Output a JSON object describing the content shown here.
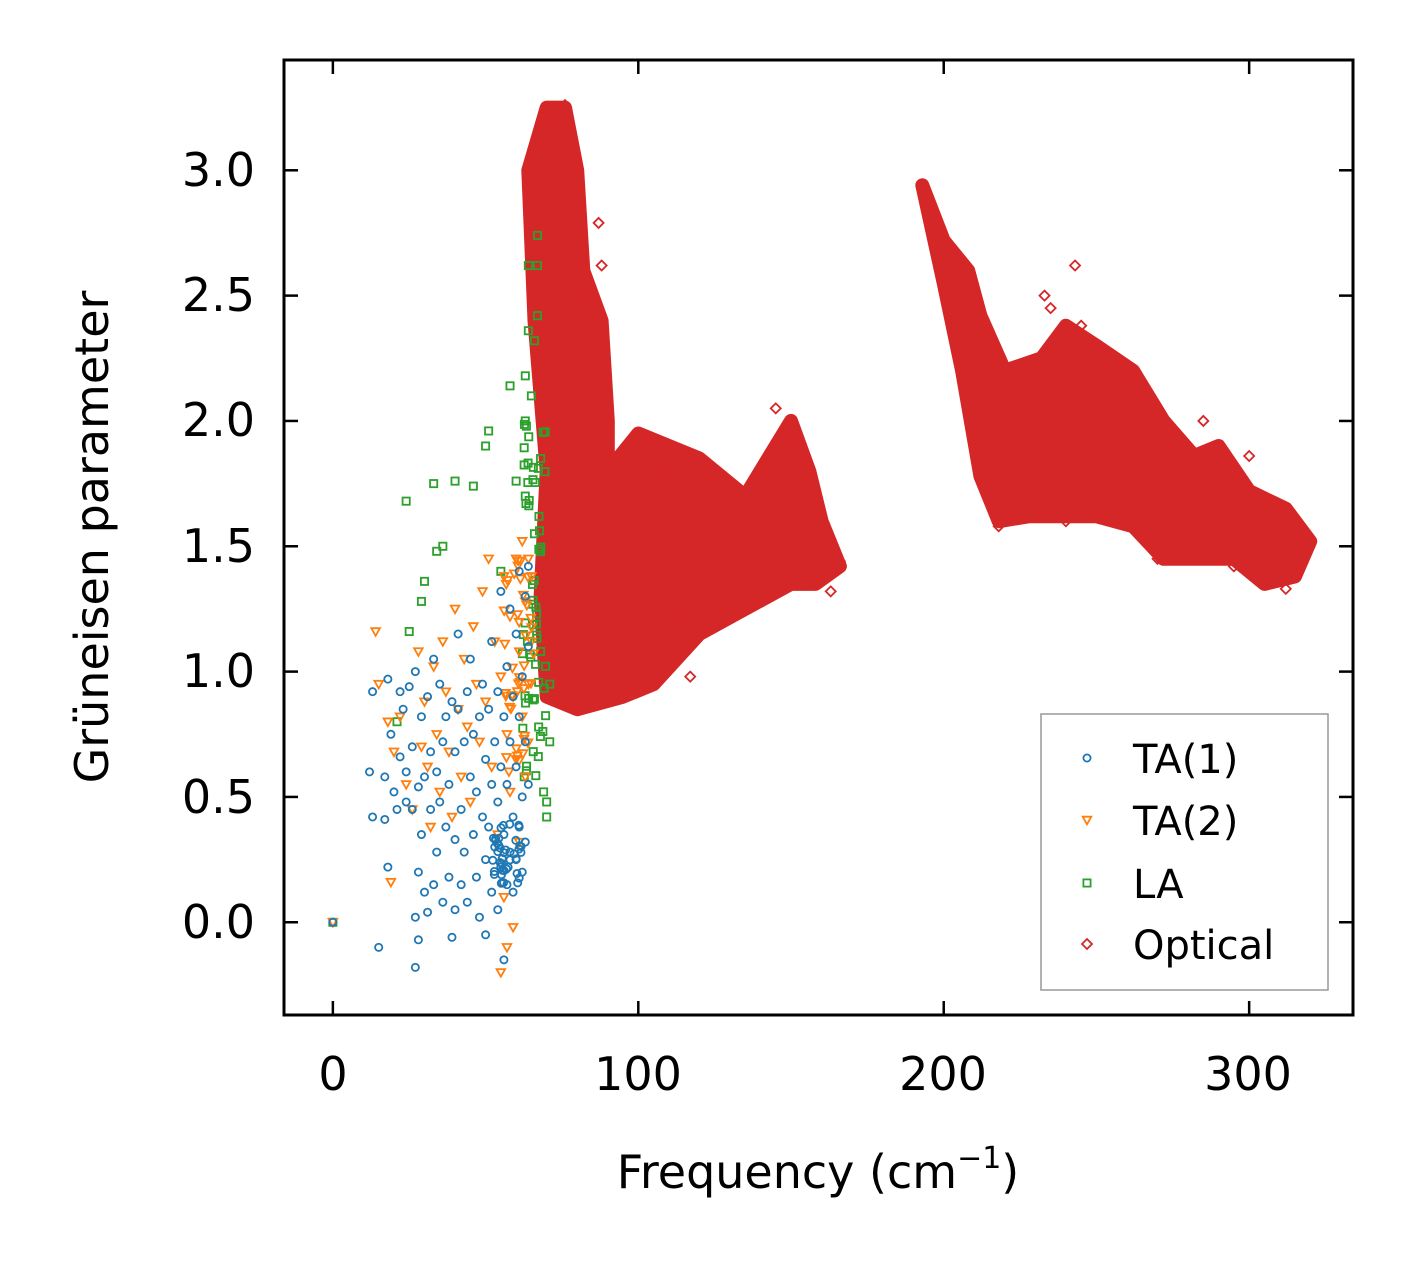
{
  "chart_data": {
    "type": "scatter",
    "title": "",
    "xlabel": "Frequency (cm",
    "xlabel_sup": "−1",
    "xlabel_close": ")",
    "ylabel": "Grüneisen parameter",
    "xlim": [
      -16,
      334
    ],
    "ylim": [
      -0.37,
      3.44
    ],
    "xticks": [
      0,
      100,
      200,
      300
    ],
    "xtick_labels": [
      "0",
      "100",
      "200",
      "300"
    ],
    "yticks": [
      0.0,
      0.5,
      1.0,
      1.5,
      2.0,
      2.5,
      3.0
    ],
    "ytick_labels": [
      "0.0",
      "0.5",
      "1.0",
      "1.5",
      "2.0",
      "2.5",
      "3.0"
    ],
    "grid": false,
    "legend_position": "lower-right",
    "series": [
      {
        "name": "TA(1)",
        "marker": "circle",
        "color": "#1f77b4",
        "points": [
          [
            0,
            0
          ],
          [
            12,
            0.6
          ],
          [
            13,
            0.92
          ],
          [
            13,
            0.42
          ],
          [
            15,
            -0.1
          ],
          [
            17,
            0.41
          ],
          [
            17,
            0.58
          ],
          [
            18,
            0.22
          ],
          [
            18,
            0.97
          ],
          [
            19,
            0.75
          ],
          [
            20,
            0.52
          ],
          [
            21,
            0.45
          ],
          [
            22,
            0.66
          ],
          [
            22,
            0.92
          ],
          [
            23,
            0.85
          ],
          [
            24,
            0.48
          ],
          [
            24,
            0.6
          ],
          [
            25,
            0.94
          ],
          [
            26,
            0.45
          ],
          [
            26,
            0.7
          ],
          [
            27,
            -0.18
          ],
          [
            27,
            1.0
          ],
          [
            27,
            0.02
          ],
          [
            28,
            0.54
          ],
          [
            28,
            0.2
          ],
          [
            28,
            -0.07
          ],
          [
            29,
            0.35
          ],
          [
            29,
            0.82
          ],
          [
            30,
            0.12
          ],
          [
            30,
            0.58
          ],
          [
            31,
            0.9
          ],
          [
            31,
            0.04
          ],
          [
            32,
            0.45
          ],
          [
            32,
            0.68
          ],
          [
            33,
            1.05
          ],
          [
            33,
            0.15
          ],
          [
            34,
            0.6
          ],
          [
            34,
            0.28
          ],
          [
            35,
            0.95
          ],
          [
            35,
            0.48
          ],
          [
            36,
            0.08
          ],
          [
            36,
            0.72
          ],
          [
            37,
            0.82
          ],
          [
            37,
            0.38
          ],
          [
            38,
            0.55
          ],
          [
            38,
            0.18
          ],
          [
            39,
            -0.06
          ],
          [
            39,
            0.88
          ],
          [
            40,
            0.68
          ],
          [
            40,
            0.05
          ],
          [
            40,
            0.33
          ],
          [
            41,
            0.85
          ],
          [
            41,
            1.15
          ],
          [
            42,
            0.45
          ],
          [
            42,
            0.15
          ],
          [
            43,
            0.72
          ],
          [
            43,
            0.28
          ],
          [
            44,
            0.92
          ],
          [
            44,
            0.08
          ],
          [
            45,
            0.58
          ],
          [
            45,
            1.05
          ],
          [
            46,
            0.35
          ],
          [
            46,
            0.75
          ],
          [
            47,
            0.18
          ],
          [
            47,
            0.52
          ],
          [
            48,
            0.82
          ],
          [
            48,
            0.02
          ],
          [
            49,
            0.42
          ],
          [
            49,
            0.95
          ],
          [
            50,
            0.25
          ],
          [
            50,
            0.65
          ],
          [
            50,
            -0.05
          ],
          [
            51,
            0.85
          ],
          [
            51,
            0.38
          ],
          [
            52,
            0.12
          ],
          [
            52,
            0.55
          ],
          [
            52,
            1.12
          ],
          [
            53,
            0.3
          ],
          [
            53,
            0.72
          ],
          [
            54,
            0.48
          ],
          [
            54,
            0.92
          ],
          [
            54,
            0.05
          ],
          [
            55,
            0.22
          ],
          [
            55,
            0.62
          ],
          [
            55,
            1.32
          ],
          [
            56,
            0.35
          ],
          [
            56,
            0.82
          ],
          [
            56,
            -0.15
          ],
          [
            57,
            0.15
          ],
          [
            57,
            0.55
          ],
          [
            57,
            1.02
          ],
          [
            58,
            0.28
          ],
          [
            58,
            0.72
          ],
          [
            58,
            1.25
          ],
          [
            59,
            0.42
          ],
          [
            59,
            0.9
          ],
          [
            59,
            0.12
          ],
          [
            60,
            0.25
          ],
          [
            60,
            0.62
          ],
          [
            60,
            1.15
          ],
          [
            61,
            0.38
          ],
          [
            61,
            0.82
          ],
          [
            61,
            1.4
          ],
          [
            62,
            0.5
          ],
          [
            62,
            0.98
          ],
          [
            62,
            0.2
          ],
          [
            63,
            0.32
          ],
          [
            63,
            0.72
          ],
          [
            63,
            1.3
          ],
          [
            64,
            0.55
          ],
          [
            64,
            1.1
          ],
          [
            64,
            1.42
          ]
        ],
        "cluster": {
          "x": [
            52,
            62
          ],
          "y": [
            0.15,
            0.4
          ],
          "count": 40
        }
      },
      {
        "name": "TA(2)",
        "marker": "triangle",
        "color": "#ff7f0e",
        "points": [
          [
            0,
            0
          ],
          [
            14,
            1.16
          ],
          [
            15,
            0.95
          ],
          [
            18,
            0.8
          ],
          [
            19,
            0.16
          ],
          [
            20,
            0.68
          ],
          [
            22,
            0.82
          ],
          [
            24,
            0.55
          ],
          [
            26,
            0.45
          ],
          [
            28,
            1.08
          ],
          [
            29,
            0.7
          ],
          [
            30,
            0.88
          ],
          [
            31,
            0.62
          ],
          [
            32,
            0.38
          ],
          [
            33,
            1.02
          ],
          [
            34,
            0.75
          ],
          [
            35,
            0.52
          ],
          [
            36,
            1.12
          ],
          [
            37,
            0.92
          ],
          [
            38,
            0.68
          ],
          [
            39,
            0.42
          ],
          [
            40,
            1.25
          ],
          [
            41,
            0.85
          ],
          [
            42,
            0.58
          ],
          [
            43,
            1.05
          ],
          [
            44,
            0.78
          ],
          [
            45,
            0.48
          ],
          [
            46,
            1.18
          ],
          [
            47,
            0.95
          ],
          [
            48,
            0.72
          ],
          [
            49,
            1.32
          ],
          [
            50,
            0.88
          ],
          [
            51,
            1.45
          ],
          [
            52,
            0.62
          ],
          [
            53,
            1.12
          ],
          [
            54,
            0.35
          ],
          [
            55,
            0.98
          ],
          [
            55,
            -0.2
          ],
          [
            56,
            1.38
          ],
          [
            56,
            0.1
          ],
          [
            57,
            0.75
          ],
          [
            57,
            -0.1
          ],
          [
            58,
            1.22
          ],
          [
            58,
            0.52
          ],
          [
            59,
            0.9
          ],
          [
            59,
            -0.02
          ],
          [
            60,
            1.45
          ],
          [
            60,
            0.65
          ],
          [
            61,
            1.08
          ],
          [
            61,
            0.32
          ],
          [
            62,
            1.52
          ],
          [
            62,
            0.82
          ],
          [
            63,
            1.28
          ],
          [
            63,
            0.58
          ],
          [
            64,
            1.45
          ],
          [
            64,
            0.95
          ],
          [
            65,
            1.38
          ],
          [
            65,
            1.12
          ]
        ],
        "cluster": {
          "x": [
            56,
            66
          ],
          "y": [
            0.6,
            1.45
          ],
          "count": 40
        }
      },
      {
        "name": "LA",
        "marker": "square",
        "color": "#2ca02c",
        "points": [
          [
            0,
            0
          ],
          [
            21,
            0.8
          ],
          [
            24,
            1.68
          ],
          [
            25,
            1.16
          ],
          [
            29,
            1.28
          ],
          [
            30,
            1.36
          ],
          [
            33,
            1.75
          ],
          [
            34,
            1.48
          ],
          [
            36,
            1.5
          ],
          [
            40,
            1.76
          ],
          [
            46,
            1.74
          ],
          [
            50,
            1.9
          ],
          [
            51,
            1.96
          ],
          [
            55,
            1.4
          ],
          [
            58,
            2.14
          ],
          [
            60,
            1.76
          ],
          [
            63,
            2.0
          ],
          [
            63,
            2.18
          ],
          [
            64,
            2.36
          ],
          [
            64,
            2.62
          ],
          [
            65,
            2.1
          ],
          [
            66,
            2.32
          ],
          [
            66,
            1.55
          ],
          [
            67,
            2.74
          ],
          [
            67,
            2.42
          ],
          [
            67,
            2.62
          ],
          [
            68,
            1.85
          ],
          [
            68,
            1.08
          ],
          [
            69,
            0.52
          ],
          [
            70,
            0.48
          ],
          [
            70,
            0.42
          ],
          [
            71,
            0.95
          ],
          [
            71,
            0.72
          ]
        ],
        "cluster": {
          "x": [
            62,
            70
          ],
          "y": [
            0.55,
            2.0
          ],
          "count": 60
        }
      },
      {
        "name": "Optical",
        "marker": "diamond",
        "color": "#d62728",
        "points": [
          [
            110,
            1.8
          ],
          [
            114,
            1.22
          ],
          [
            117,
            0.98
          ],
          [
            145,
            2.05
          ],
          [
            150,
            1.95
          ],
          [
            166,
            1.44
          ],
          [
            163,
            1.32
          ],
          [
            76,
            3.26
          ],
          [
            87,
            2.79
          ],
          [
            88,
            2.62
          ],
          [
            193,
            2.94
          ],
          [
            233,
            2.5
          ],
          [
            235,
            2.45
          ],
          [
            243,
            2.62
          ],
          [
            245,
            2.38
          ],
          [
            250,
            2.3
          ],
          [
            262,
            2.15
          ],
          [
            285,
            2.0
          ],
          [
            300,
            1.86
          ],
          [
            318,
            1.5
          ],
          [
            312,
            1.33
          ],
          [
            295,
            1.42
          ],
          [
            270,
            1.45
          ],
          [
            240,
            1.6
          ],
          [
            218,
            1.58
          ],
          [
            225,
            1.72
          ],
          [
            128,
            1.3
          ],
          [
            90,
            0.9
          ],
          [
            80,
            0.85
          ]
        ],
        "blobs": [
          [
            [
              70,
              0.9
            ],
            [
              68,
              1.3
            ],
            [
              70,
              1.8
            ],
            [
              66,
              2.4
            ],
            [
              64,
              3.0
            ],
            [
              70,
              3.25
            ],
            [
              76,
              3.25
            ],
            [
              80,
              3.0
            ],
            [
              82,
              2.6
            ],
            [
              88,
              2.4
            ],
            [
              90,
              2.0
            ],
            [
              90,
              1.8
            ],
            [
              100,
              1.95
            ],
            [
              120,
              1.85
            ],
            [
              135,
              1.7
            ],
            [
              150,
              2.0
            ],
            [
              156,
              1.8
            ],
            [
              160,
              1.6
            ],
            [
              166,
              1.42
            ],
            [
              158,
              1.35
            ],
            [
              150,
              1.35
            ],
            [
              135,
              1.25
            ],
            [
              120,
              1.15
            ],
            [
              105,
              0.95
            ],
            [
              95,
              0.9
            ],
            [
              80,
              0.85
            ]
          ],
          [
            [
              193,
              2.94
            ],
            [
              200,
              2.72
            ],
            [
              208,
              2.6
            ],
            [
              212,
              2.42
            ],
            [
              220,
              2.2
            ],
            [
              232,
              2.25
            ],
            [
              240,
              2.38
            ],
            [
              250,
              2.3
            ],
            [
              262,
              2.2
            ],
            [
              272,
              2.0
            ],
            [
              282,
              1.86
            ],
            [
              290,
              1.9
            ],
            [
              300,
              1.72
            ],
            [
              312,
              1.65
            ],
            [
              320,
              1.52
            ],
            [
              315,
              1.38
            ],
            [
              305,
              1.35
            ],
            [
              295,
              1.45
            ],
            [
              285,
              1.45
            ],
            [
              272,
              1.45
            ],
            [
              262,
              1.58
            ],
            [
              250,
              1.62
            ],
            [
              238,
              1.62
            ],
            [
              228,
              1.62
            ],
            [
              218,
              1.6
            ],
            [
              212,
              1.78
            ],
            [
              206,
              2.2
            ],
            [
              200,
              2.55
            ]
          ]
        ]
      }
    ]
  },
  "legend": {
    "items": [
      {
        "label": "TA(1)",
        "marker": "circle",
        "color": "#1f77b4"
      },
      {
        "label": "TA(2)",
        "marker": "triangle",
        "color": "#ff7f0e"
      },
      {
        "label": "LA",
        "marker": "square",
        "color": "#2ca02c"
      },
      {
        "label": "Optical",
        "marker": "diamond",
        "color": "#d62728"
      }
    ]
  }
}
